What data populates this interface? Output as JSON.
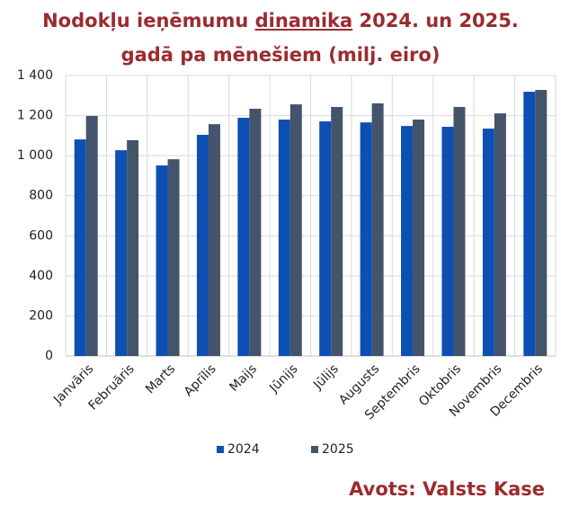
{
  "chart_data": {
    "type": "bar",
    "title": {
      "line1_start": "Nodokļu ieņēmumu",
      "line1_underlined": "dinamika",
      "line1_end": "2024. un 2025.",
      "line2": "gadā pa mēnešiem (milj. eiro)"
    },
    "categories": [
      "Janvāris",
      "Februāris",
      "Marts",
      "Aprīlis",
      "Maijs",
      "Jūnijs",
      "Jūlijs",
      "Augusts",
      "Septembris",
      "Oktobris",
      "Novembris",
      "Decembris"
    ],
    "series": [
      {
        "name": "2024",
        "color": "#0e4fb3",
        "values": [
          1081,
          1027,
          951,
          1104,
          1189,
          1180,
          1171,
          1166,
          1148,
          1144,
          1135,
          1319
        ]
      },
      {
        "name": "2025",
        "color": "#44546a",
        "values": [
          1198,
          1077,
          982,
          1157,
          1234,
          1256,
          1243,
          1261,
          1180,
          1243,
          1211,
          1328
        ]
      }
    ],
    "ylim": [
      0,
      1400
    ],
    "yticks": [
      0,
      200,
      400,
      600,
      800,
      {
        "value": 1000,
        "label": "1 000"
      },
      {
        "value": 1200,
        "label": "1 200"
      },
      {
        "value": 1400,
        "label": "1 400"
      }
    ],
    "grid": true,
    "legend": "bottom",
    "source": "Avots: Valsts Kase"
  }
}
